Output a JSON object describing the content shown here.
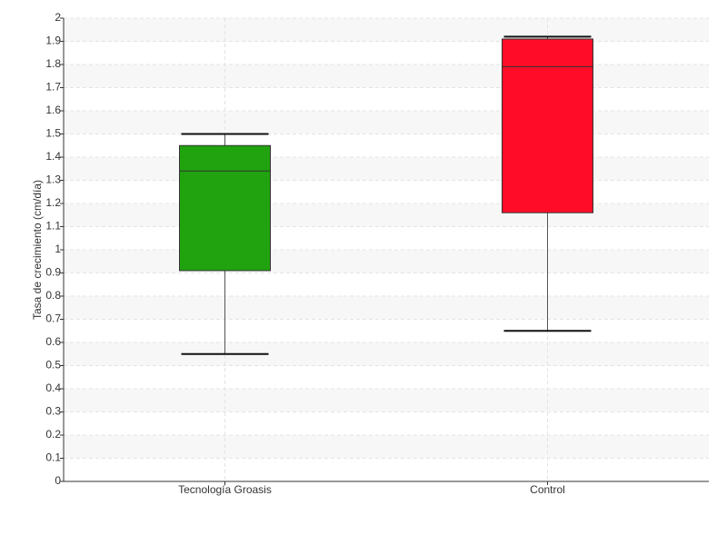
{
  "chart_data": {
    "type": "box",
    "y_label": "Tasa de crecimiento (cm/día)",
    "categories": [
      "Tecnología Groasis",
      "Control"
    ],
    "values": [
      {
        "min": 0.55,
        "q1": 0.91,
        "median": 1.34,
        "q3": 1.45,
        "max": 1.5,
        "color": "#21a30f"
      },
      {
        "min": 0.65,
        "q1": 1.16,
        "median": 1.79,
        "q3": 1.91,
        "max": 1.92,
        "color": "#ff0d28"
      }
    ],
    "ylim": [
      0,
      2
    ],
    "yticks": [
      0,
      0.1,
      0.2,
      0.3,
      0.4,
      0.5,
      0.6,
      0.7,
      0.8,
      0.9,
      1,
      1.1,
      1.2,
      1.3,
      1.4,
      1.5,
      1.6,
      1.7,
      1.8,
      1.9,
      2
    ],
    "grid": true
  }
}
